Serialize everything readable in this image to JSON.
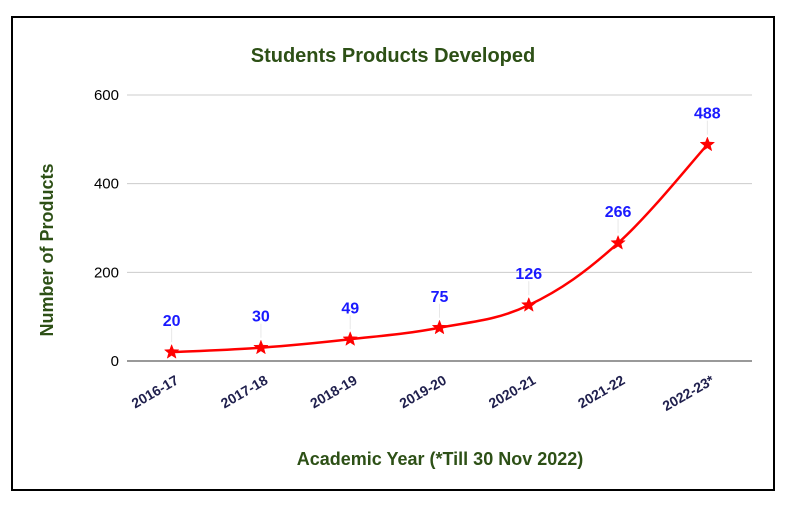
{
  "chart_data": {
    "type": "line",
    "title": "Students Products Developed",
    "xlabel": "Academic Year (*Till 30 Nov 2022)",
    "ylabel": "Number of Products",
    "categories": [
      "2016-17",
      "2017-18",
      "2018-19",
      "2019-20",
      "2020-21",
      "2021-22",
      "2022-23*"
    ],
    "series": [
      {
        "values": [
          20,
          30,
          49,
          75,
          126,
          266,
          488
        ]
      }
    ],
    "ylim": [
      0,
      600
    ],
    "yticks": [
      "0",
      "200",
      "400",
      "600"
    ],
    "grid": true,
    "marker": "star",
    "colors": {
      "line": "#ff0000",
      "marker": "#ff0000",
      "data_label": "#1a1aff",
      "title": "#2d5016",
      "grid": "#cccccc"
    }
  }
}
